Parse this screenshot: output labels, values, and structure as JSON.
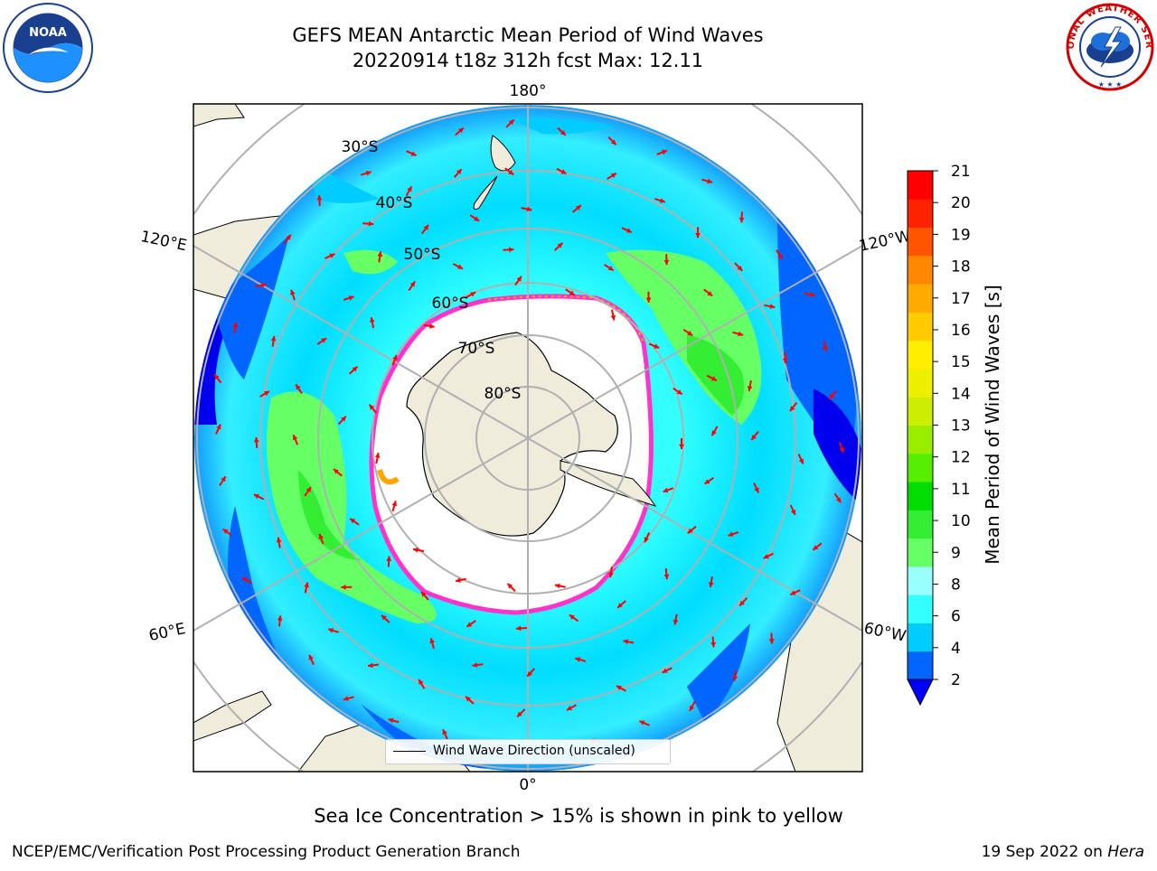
{
  "title": {
    "line1": "GEFS MEAN Antarctic Mean Period of Wind Waves",
    "line2": "20220914 t18z 312h fcst   Max: 12.11"
  },
  "logos": {
    "left": "noaa-logo",
    "left_text": "NOAA",
    "right": "national-weather-service-logo",
    "right_text": "NATIONAL WEATHER SERVICE"
  },
  "map": {
    "projection": "south-polar-stereographic",
    "lon_labels": [
      "180°",
      "120°E",
      "120°W",
      "60°E",
      "60°W",
      "0°"
    ],
    "lat_labels": [
      "30°S",
      "40°S",
      "50°S",
      "60°S",
      "70°S",
      "80°S"
    ],
    "arrow_color": "#ff0000",
    "land_color": "#efecdc",
    "ice_edge_colors": [
      "#ff00ff",
      "#ffa500"
    ]
  },
  "legend": {
    "label": "Wind Wave Direction (unscaled)"
  },
  "colorbar": {
    "label": "Mean Period of Wind Waves [s]",
    "ticks": [
      "2",
      "4",
      "6",
      "8",
      "9",
      "10",
      "11",
      "12",
      "13",
      "14",
      "15",
      "16",
      "17",
      "18",
      "19",
      "20",
      "21"
    ],
    "colors": [
      "#0066ff",
      "#00ccff",
      "#33ffff",
      "#99ffff",
      "#66ff66",
      "#33ee33",
      "#00dd00",
      "#55ee00",
      "#99ee00",
      "#ccee00",
      "#eeee00",
      "#ffee00",
      "#ffcc00",
      "#ffaa00",
      "#ff8800",
      "#ff5500",
      "#ff2200",
      "#ff0000"
    ],
    "under_color": "#0000ff"
  },
  "footnote": "Sea Ice Concentration > 15% is shown in pink to yellow",
  "credit": "NCEP/EMC/Verification Post Processing Product Generation Branch",
  "date": {
    "text": "19 Sep 2022 on ",
    "machine": "Hera"
  }
}
